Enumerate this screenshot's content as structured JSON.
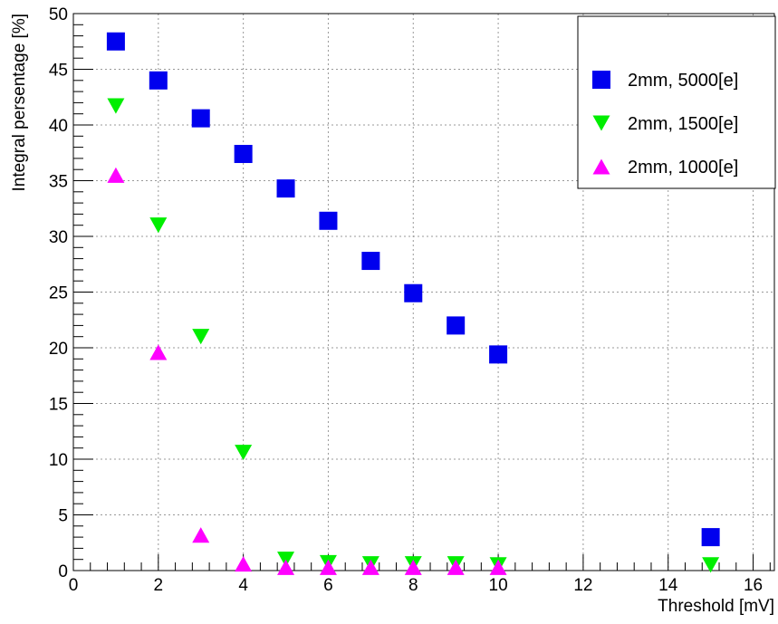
{
  "chart_data": {
    "type": "scatter",
    "title": "",
    "xlabel": "Threshold [mV]",
    "ylabel": "Integral persentage [%]",
    "xlim": [
      0,
      16.5
    ],
    "ylim": [
      0,
      50
    ],
    "x_ticks": [
      0,
      2,
      4,
      6,
      8,
      10,
      12,
      14,
      16
    ],
    "y_ticks": [
      0,
      5,
      10,
      15,
      20,
      25,
      30,
      35,
      40,
      45,
      50
    ],
    "grid": true,
    "legend_position": "top-right",
    "series": [
      {
        "name": "2mm, 5000[e]",
        "marker": "square",
        "color": "#0000ee",
        "x": [
          1,
          2,
          3,
          4,
          5,
          6,
          7,
          8,
          9,
          10,
          15
        ],
        "y": [
          47.5,
          44.0,
          40.6,
          37.4,
          34.3,
          31.4,
          27.8,
          24.9,
          22.0,
          19.4,
          3.0
        ]
      },
      {
        "name": "2mm, 1500[e]",
        "marker": "triangle-down",
        "color": "#00ee00",
        "x": [
          1,
          2,
          3,
          4,
          5,
          6,
          7,
          8,
          9,
          10,
          15
        ],
        "y": [
          41.7,
          31.0,
          21.0,
          10.6,
          1.0,
          0.7,
          0.6,
          0.6,
          0.6,
          0.5,
          0.5
        ]
      },
      {
        "name": "2mm, 1000[e]",
        "marker": "triangle-up",
        "color": "#ff00ff",
        "x": [
          1,
          2,
          3,
          4,
          5,
          6,
          7,
          8,
          9,
          10
        ],
        "y": [
          35.5,
          19.6,
          3.2,
          0.6,
          0.3,
          0.3,
          0.3,
          0.3,
          0.3,
          0.3
        ]
      }
    ]
  }
}
